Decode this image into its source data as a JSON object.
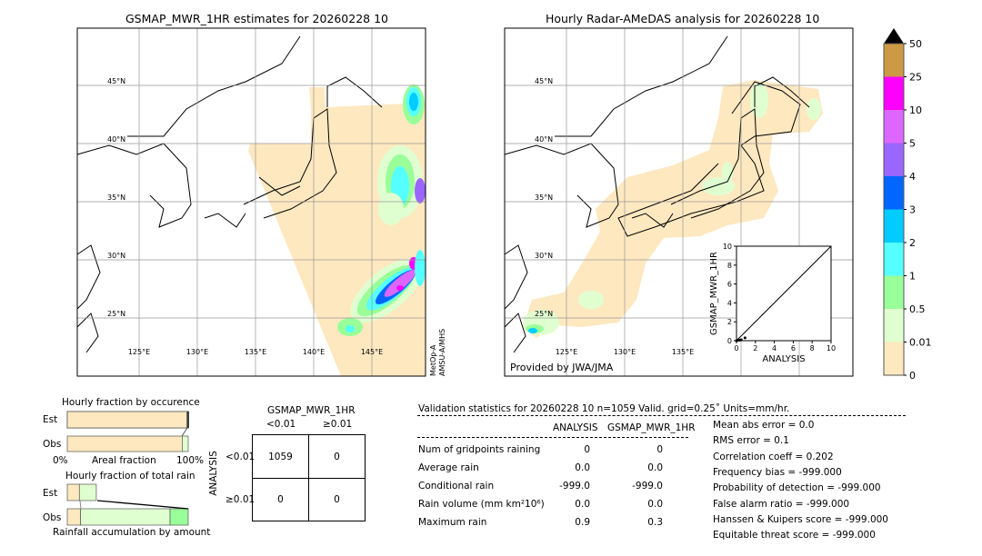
{
  "left_map": {
    "title": "GSMAP_MWR_1HR estimates for 20260228 10",
    "lat_labels": [
      "45°N",
      "40°N",
      "35°N",
      "30°N",
      "25°N"
    ],
    "lon_labels": [
      "125°E",
      "130°E",
      "135°E",
      "140°E",
      "145°E"
    ],
    "sensor_label": "MetOp-A\nAMSU-A/MHS",
    "sensor_line1": "MetOp-A",
    "sensor_line2": "AMSU-A/MHS"
  },
  "right_map": {
    "title": "Hourly Radar-AMeDAS analysis for 20260228 10",
    "lat_labels": [
      "45°N",
      "40°N",
      "35°N",
      "30°N",
      "25°N"
    ],
    "lon_labels": [
      "125°E",
      "130°E",
      "135°E"
    ],
    "credit": "Provided by JWA/JMA"
  },
  "colorbar": {
    "tick_labels": [
      "0",
      "0.01",
      "0.5",
      "1",
      "2",
      "3",
      "4",
      "5",
      "10",
      "25",
      "50"
    ],
    "colors": [
      "#fee8c0",
      "#e0ffd0",
      "#99ff99",
      "#55ffff",
      "#00ccff",
      "#0066ff",
      "#9966ff",
      "#dd66ff",
      "#ff00ff",
      "#cc9944"
    ],
    "extend_color": "#000000"
  },
  "chart_data": [
    {
      "type": "scatter",
      "xlabel": "ANALYSIS",
      "ylabel": "GSMAP_MWR_1HR",
      "xlim": [
        0,
        10
      ],
      "ylim": [
        0,
        10
      ],
      "ticks": [
        "0",
        "2",
        "4",
        "6",
        "8",
        "10"
      ],
      "points": [
        [
          0.0,
          0.0
        ],
        [
          0.1,
          0.05
        ],
        [
          0.2,
          0.1
        ],
        [
          0.3,
          0.05
        ],
        [
          0.5,
          0.1
        ],
        [
          0.9,
          0.3
        ]
      ],
      "reference_line": "y=x"
    },
    {
      "type": "bar",
      "title": "Hourly fraction by occurence",
      "xlabel": "Areal fraction",
      "x_tick_labels": [
        "0%",
        "100%"
      ],
      "categories": [
        "Est",
        "Obs"
      ],
      "series": [
        {
          "category": "Est",
          "fractions": [
            0.99,
            0.01
          ],
          "colors": [
            "#fee8c0",
            "#e0ffd0"
          ]
        },
        {
          "category": "Obs",
          "fractions": [
            0.95,
            0.05
          ],
          "colors": [
            "#fee8c0",
            "#e0ffd0"
          ]
        }
      ]
    },
    {
      "type": "bar",
      "title": "Hourly fraction of total rain",
      "xlabel": "Rainfall accumulation by amount",
      "categories": [
        "Est",
        "Obs"
      ],
      "series": [
        {
          "category": "Est",
          "fractions": [
            0.1,
            0.14
          ],
          "colors": [
            "#fee8c0",
            "#e0ffd0"
          ]
        },
        {
          "category": "Obs",
          "fractions": [
            0.11,
            0.74,
            0.15
          ],
          "colors": [
            "#fee8c0",
            "#e0ffd0",
            "#99ff99"
          ]
        }
      ]
    }
  ],
  "contingency": {
    "col_title": "GSMAP_MWR_1HR",
    "row_title": "ANALYSIS",
    "col_labels": [
      "<0.01",
      "≥0.01"
    ],
    "row_labels": [
      "<0.01",
      "≥0.01"
    ],
    "cells": [
      [
        "1059",
        "0"
      ],
      [
        "0",
        "0"
      ]
    ]
  },
  "validation": {
    "header": "Validation statistics for 20260228 10  n=1059 Valid. grid=0.25˚ Units=mm/hr.",
    "col_headers": [
      "ANALYSIS",
      "GSMAP_MWR_1HR"
    ],
    "rows": [
      {
        "label": "Num of gridpoints raining",
        "analysis": "0",
        "gsmap": "0"
      },
      {
        "label": "Average rain",
        "analysis": "0.0",
        "gsmap": "0.0"
      },
      {
        "label": "Conditional rain",
        "analysis": "-999.0",
        "gsmap": "-999.0"
      },
      {
        "label": "Rain volume (mm km²10⁶)",
        "analysis": "0.0",
        "gsmap": "0.0"
      },
      {
        "label": "Maximum rain",
        "analysis": "0.9",
        "gsmap": "0.3"
      }
    ],
    "scores": [
      "Mean abs error =    0.0",
      "RMS error =    0.1",
      "Correlation coeff =  0.202",
      "Frequency bias = -999.000",
      "Probability of detection = -999.000",
      "False alarm ratio = -999.000",
      "Hanssen & Kuipers score = -999.000",
      "Equitable threat score = -999.000"
    ]
  }
}
